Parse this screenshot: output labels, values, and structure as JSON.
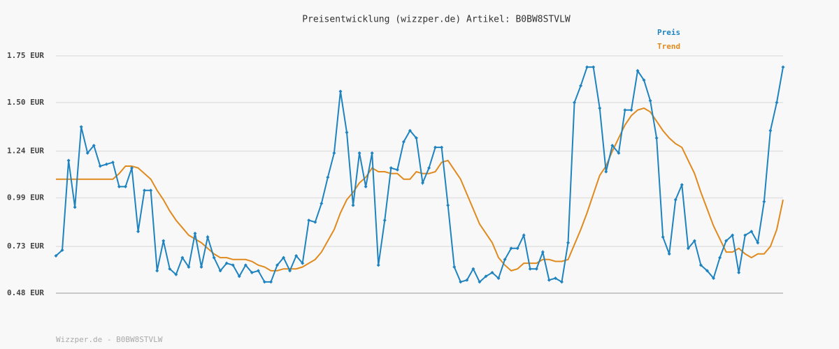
{
  "chart_data": {
    "type": "line",
    "title": "Preisentwicklung (wizzper.de) Artikel: B0BW8STVLW",
    "footer": "Wizzper.de - B0BW8STVLW",
    "legend": "top-right",
    "grid": true,
    "ylim": [
      0.48,
      1.75
    ],
    "yticks": [
      {
        "value": 0.48,
        "label": "0.48 EUR"
      },
      {
        "value": 0.73,
        "label": "0.73 EUR"
      },
      {
        "value": 0.99,
        "label": "0.99 EUR"
      },
      {
        "value": 1.24,
        "label": "1.24 EUR"
      },
      {
        "value": 1.5,
        "label": "1.50 EUR"
      },
      {
        "value": 1.75,
        "label": "1.75 EUR"
      }
    ],
    "series": [
      {
        "name": "Preis",
        "color": "#1e83bf",
        "markers": true,
        "values": [
          0.68,
          0.71,
          1.19,
          0.94,
          1.37,
          1.23,
          1.27,
          1.16,
          1.17,
          1.18,
          1.05,
          1.05,
          1.15,
          0.81,
          1.03,
          1.03,
          0.6,
          0.76,
          0.61,
          0.58,
          0.67,
          0.62,
          0.8,
          0.62,
          0.78,
          0.67,
          0.6,
          0.64,
          0.63,
          0.57,
          0.63,
          0.59,
          0.6,
          0.54,
          0.54,
          0.63,
          0.67,
          0.6,
          0.68,
          0.64,
          0.87,
          0.86,
          0.96,
          1.1,
          1.23,
          1.56,
          1.34,
          0.95,
          1.23,
          1.05,
          1.23,
          0.63,
          0.87,
          1.15,
          1.14,
          1.29,
          1.35,
          1.31,
          1.07,
          1.15,
          1.26,
          1.26,
          0.95,
          0.62,
          0.54,
          0.55,
          0.61,
          0.54,
          0.57,
          0.59,
          0.56,
          0.66,
          0.72,
          0.72,
          0.79,
          0.61,
          0.61,
          0.7,
          0.55,
          0.56,
          0.54,
          0.75,
          1.5,
          1.59,
          1.69,
          1.69,
          1.47,
          1.13,
          1.27,
          1.23,
          1.46,
          1.46,
          1.67,
          1.62,
          1.51,
          1.31,
          0.78,
          0.69,
          0.98,
          1.06,
          0.72,
          0.76,
          0.63,
          0.6,
          0.56,
          0.67,
          0.76,
          0.79,
          0.59,
          0.79,
          0.81,
          0.75,
          0.97,
          1.35,
          1.5,
          1.69
        ]
      },
      {
        "name": "Trend",
        "color": "#e08a1e",
        "markers": false,
        "values": [
          1.09,
          1.09,
          1.09,
          1.09,
          1.09,
          1.09,
          1.09,
          1.09,
          1.09,
          1.09,
          1.12,
          1.16,
          1.16,
          1.15,
          1.12,
          1.09,
          1.03,
          0.98,
          0.92,
          0.87,
          0.83,
          0.79,
          0.77,
          0.75,
          0.72,
          0.69,
          0.67,
          0.67,
          0.66,
          0.66,
          0.66,
          0.65,
          0.63,
          0.62,
          0.6,
          0.6,
          0.61,
          0.61,
          0.61,
          0.62,
          0.64,
          0.66,
          0.7,
          0.76,
          0.82,
          0.91,
          0.98,
          1.02,
          1.07,
          1.1,
          1.15,
          1.13,
          1.13,
          1.12,
          1.12,
          1.09,
          1.09,
          1.13,
          1.12,
          1.12,
          1.13,
          1.18,
          1.19,
          1.14,
          1.09,
          1.01,
          0.93,
          0.85,
          0.8,
          0.75,
          0.67,
          0.63,
          0.6,
          0.61,
          0.64,
          0.64,
          0.64,
          0.66,
          0.66,
          0.65,
          0.65,
          0.66,
          0.74,
          0.82,
          0.91,
          1.01,
          1.11,
          1.16,
          1.24,
          1.31,
          1.38,
          1.43,
          1.46,
          1.47,
          1.45,
          1.4,
          1.35,
          1.31,
          1.28,
          1.26,
          1.19,
          1.12,
          1.02,
          0.93,
          0.84,
          0.77,
          0.7,
          0.7,
          0.72,
          0.69,
          0.67,
          0.69,
          0.69,
          0.73,
          0.82,
          0.98
        ]
      }
    ]
  }
}
